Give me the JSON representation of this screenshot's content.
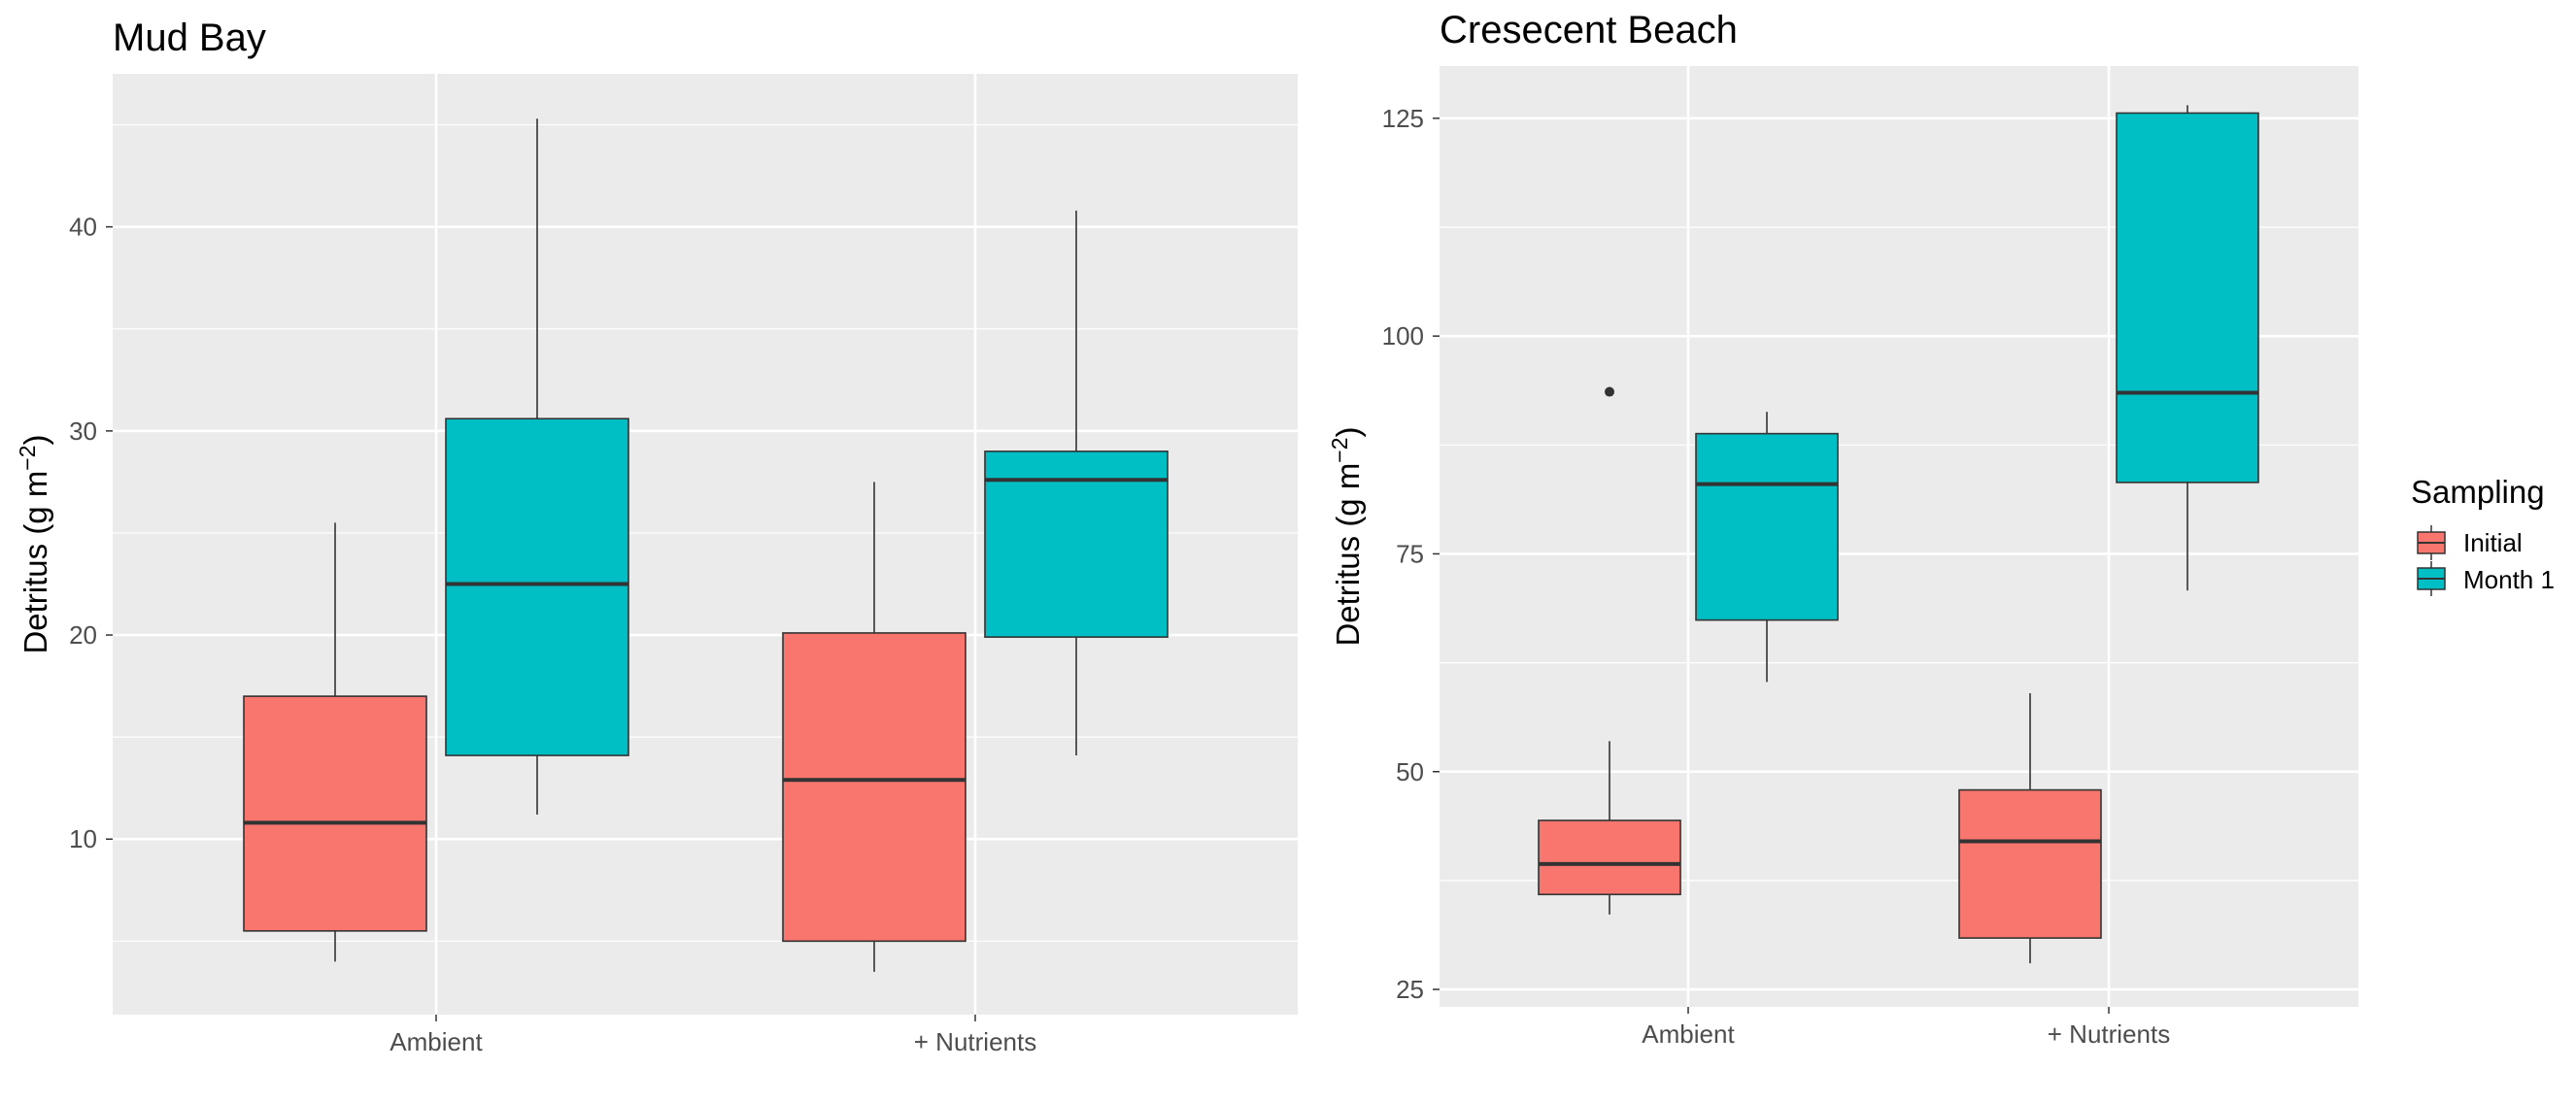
{
  "chart_data": [
    {
      "type": "boxplot",
      "title": "Mud Bay",
      "xlabel": "",
      "ylabel": "Detritus (g m",
      "ylabel_superscript": "−2",
      "ylabel_suffix": ")",
      "categories": [
        "Ambient",
        "+ Nutrients"
      ],
      "ylim": [
        1.4,
        47.5
      ],
      "yticks": [
        10,
        20,
        30,
        40
      ],
      "series": [
        {
          "name": "Initial",
          "color": "#F8766D",
          "boxes": [
            {
              "category": "Ambient",
              "min": 4.0,
              "q1": 5.5,
              "median": 10.8,
              "q3": 17.0,
              "max": 25.5,
              "outliers": []
            },
            {
              "category": "+ Nutrients",
              "min": 3.5,
              "q1": 5.0,
              "median": 12.9,
              "q3": 20.1,
              "max": 27.5,
              "outliers": []
            }
          ]
        },
        {
          "name": "Month 1",
          "color": "#00BFC4",
          "boxes": [
            {
              "category": "Ambient",
              "min": 11.2,
              "q1": 14.1,
              "median": 22.5,
              "q3": 30.6,
              "max": 45.3,
              "outliers": []
            },
            {
              "category": "+ Nutrients",
              "min": 14.1,
              "q1": 19.9,
              "median": 27.6,
              "q3": 29.0,
              "max": 40.8,
              "outliers": []
            }
          ]
        }
      ]
    },
    {
      "type": "boxplot",
      "title": "Cresecent Beach",
      "xlabel": "",
      "ylabel": "Detritus (g m",
      "ylabel_superscript": "−2",
      "ylabel_suffix": ")",
      "categories": [
        "Ambient",
        "+ Nutrients"
      ],
      "ylim": [
        23,
        131
      ],
      "yticks": [
        25,
        50,
        75,
        100,
        125
      ],
      "series": [
        {
          "name": "Initial",
          "color": "#F8766D",
          "boxes": [
            {
              "category": "Ambient",
              "min": 33.6,
              "q1": 35.9,
              "median": 39.4,
              "q3": 44.4,
              "max": 53.5,
              "outliers": [
                93.6
              ]
            },
            {
              "category": "+ Nutrients",
              "min": 28.0,
              "q1": 30.9,
              "median": 42.0,
              "q3": 47.9,
              "max": 59.0,
              "outliers": []
            }
          ]
        },
        {
          "name": "Month 1",
          "color": "#00BFC4",
          "boxes": [
            {
              "category": "Ambient",
              "min": 60.3,
              "q1": 67.4,
              "median": 83.0,
              "q3": 88.8,
              "max": 91.3,
              "outliers": []
            },
            {
              "category": "+ Nutrients",
              "min": 70.8,
              "q1": 83.2,
              "median": 93.5,
              "q3": 125.6,
              "max": 126.5,
              "outliers": []
            }
          ]
        }
      ]
    }
  ],
  "legend": {
    "title": "Sampling",
    "items": [
      {
        "label": "Initial",
        "color": "#F8766D"
      },
      {
        "label": "Month 1",
        "color": "#00BFC4"
      }
    ]
  }
}
